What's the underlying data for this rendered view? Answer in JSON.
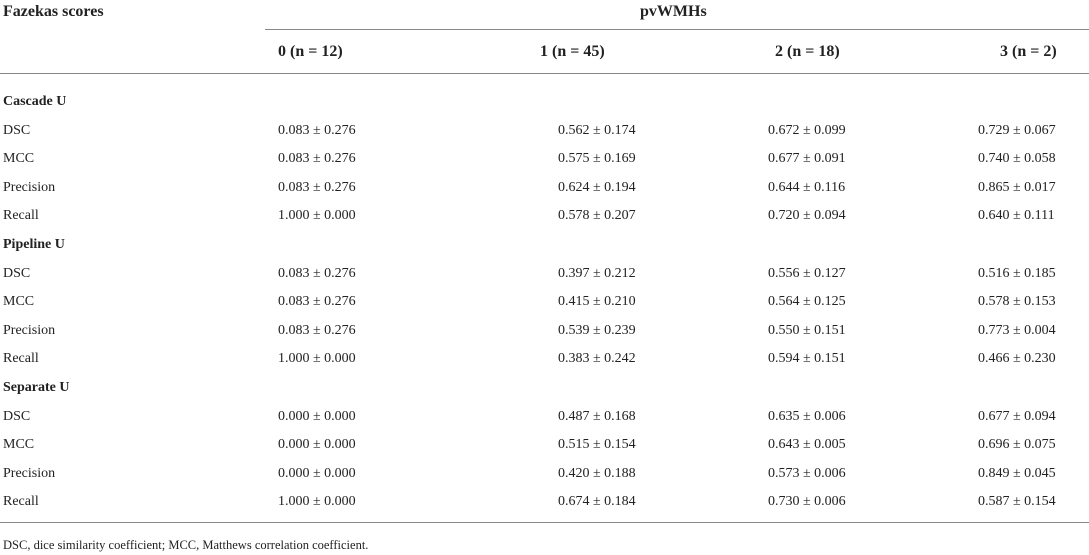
{
  "header": {
    "title": "Fazekas scores",
    "group": "pvWMHs",
    "columns": [
      "0 (n = 12)",
      "1 (n = 45)",
      "2 (n = 18)",
      "3 (n = 2)"
    ]
  },
  "sections": [
    {
      "name": "Cascade U",
      "rows": [
        {
          "label": "DSC",
          "cells": [
            "0.083 ± 0.276",
            "0.562 ± 0.174",
            "0.672 ± 0.099",
            "0.729 ± 0.067"
          ]
        },
        {
          "label": "MCC",
          "cells": [
            "0.083 ± 0.276",
            "0.575 ± 0.169",
            "0.677 ± 0.091",
            "0.740 ± 0.058"
          ]
        },
        {
          "label": "Precision",
          "cells": [
            "0.083 ± 0.276",
            "0.624 ± 0.194",
            "0.644 ± 0.116",
            "0.865 ± 0.017"
          ]
        },
        {
          "label": "Recall",
          "cells": [
            "1.000 ± 0.000",
            "0.578 ± 0.207",
            "0.720 ± 0.094",
            "0.640 ± 0.111"
          ]
        }
      ]
    },
    {
      "name": "Pipeline U",
      "rows": [
        {
          "label": "DSC",
          "cells": [
            "0.083 ± 0.276",
            "0.397 ± 0.212",
            "0.556 ± 0.127",
            "0.516 ± 0.185"
          ]
        },
        {
          "label": "MCC",
          "cells": [
            "0.083 ± 0.276",
            "0.415 ± 0.210",
            "0.564 ± 0.125",
            "0.578 ± 0.153"
          ]
        },
        {
          "label": "Precision",
          "cells": [
            "0.083 ± 0.276",
            "0.539 ± 0.239",
            "0.550 ± 0.151",
            "0.773 ± 0.004"
          ]
        },
        {
          "label": "Recall",
          "cells": [
            "1.000 ± 0.000",
            "0.383 ± 0.242",
            "0.594 ± 0.151",
            "0.466 ± 0.230"
          ]
        }
      ]
    },
    {
      "name": "Separate U",
      "rows": [
        {
          "label": "DSC",
          "cells": [
            "0.000 ± 0.000",
            "0.487 ± 0.168",
            "0.635 ± 0.006",
            "0.677 ± 0.094"
          ]
        },
        {
          "label": "MCC",
          "cells": [
            "0.000 ± 0.000",
            "0.515 ± 0.154",
            "0.643 ± 0.005",
            "0.696 ± 0.075"
          ]
        },
        {
          "label": "Precision",
          "cells": [
            "0.000 ± 0.000",
            "0.420 ± 0.188",
            "0.573 ± 0.006",
            "0.849 ± 0.045"
          ]
        },
        {
          "label": "Recall",
          "cells": [
            "1.000 ± 0.000",
            "0.674 ± 0.184",
            "0.730 ± 0.006",
            "0.587 ± 0.154"
          ]
        }
      ]
    }
  ],
  "footnote": "DSC, dice similarity coefficient; MCC, Matthews correlation coefficient."
}
